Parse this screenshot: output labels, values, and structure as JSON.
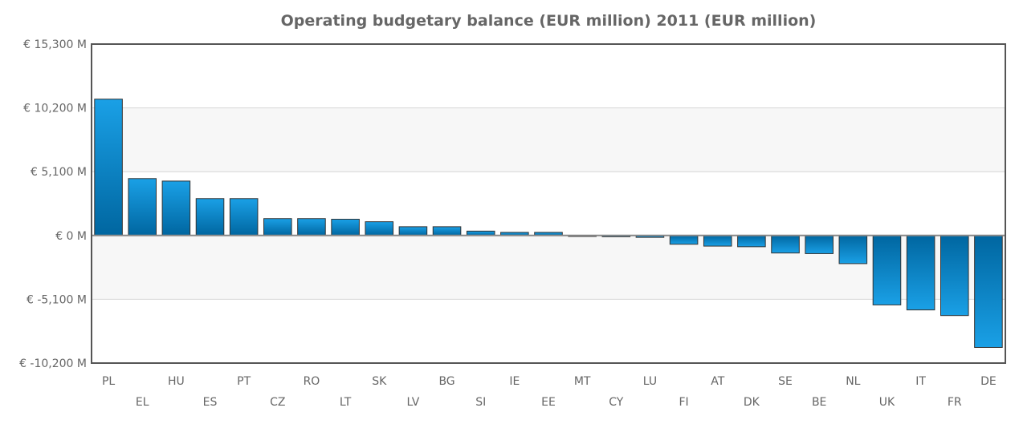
{
  "chart_data": {
    "type": "bar",
    "title": "Operating budgetary balance (EUR million) 2011 (EUR million)",
    "xlabel": "",
    "ylabel": "",
    "ylim": [
      -10200,
      15300
    ],
    "yticks": [
      15300,
      10200,
      5100,
      0,
      -5100,
      -10200
    ],
    "ytick_labels": [
      "€ 15,300 M",
      "€ 10,200 M",
      "€ 5,100 M",
      "€ 0 M",
      "€ -5,100 M",
      "€ -10,200 M"
    ],
    "legend": "none",
    "grid": true,
    "categories": [
      "PL",
      "EL",
      "HU",
      "ES",
      "PT",
      "CZ",
      "RO",
      "LT",
      "SK",
      "LV",
      "BG",
      "SI",
      "IE",
      "EE",
      "MT",
      "CY",
      "LU",
      "FI",
      "AT",
      "DK",
      "SE",
      "BE",
      "NL",
      "UK",
      "IT",
      "FR",
      "DE"
    ],
    "values": [
      10900,
      4550,
      4350,
      2950,
      2950,
      1350,
      1350,
      1300,
      1100,
      700,
      700,
      350,
      250,
      250,
      -50,
      -100,
      -150,
      -700,
      -850,
      -900,
      -1400,
      -1450,
      -2250,
      -5550,
      -5950,
      -6400,
      -8950
    ],
    "colors": {
      "bar_dark": "#0066a0",
      "bar_light": "#1aa0e6",
      "bar_stroke": "#333333",
      "band": "#f7f7f7",
      "gridline": "#d6d6d6",
      "frame": "#555555",
      "zero_line": "#888888"
    }
  }
}
